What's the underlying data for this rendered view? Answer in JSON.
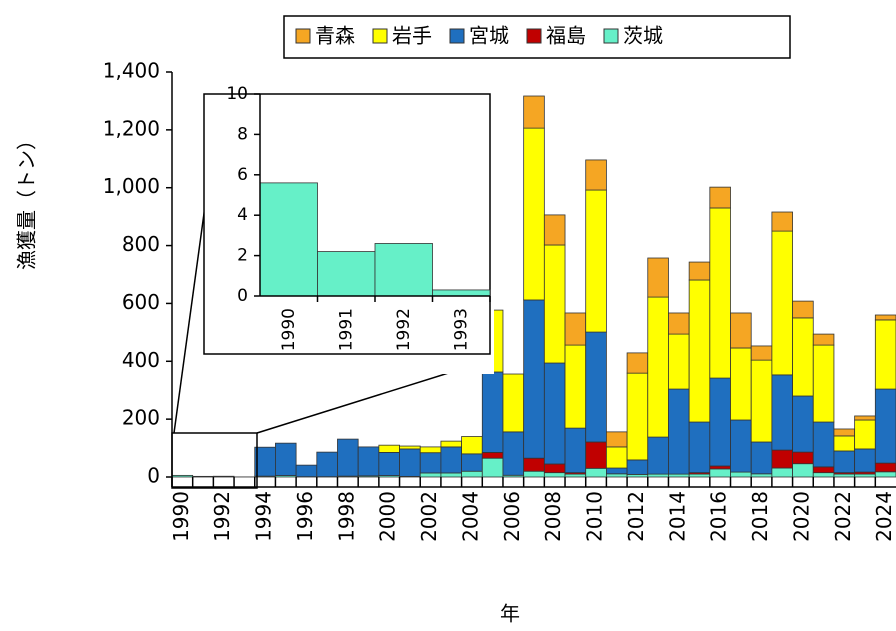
{
  "chart_data": [
    {
      "type": "stacked_bar",
      "y_label": "漁獲量（トン）",
      "x_label": "年",
      "categories": [
        "1990",
        null,
        "1992",
        null,
        "1994",
        null,
        "1996",
        null,
        "1998",
        null,
        "2000",
        null,
        "2002",
        null,
        "2004",
        null,
        "2006",
        null,
        "2008",
        null,
        "2010",
        null,
        "2012",
        null,
        "2014",
        null,
        "2016",
        null,
        "2018",
        null,
        "2020",
        null,
        "2022",
        null,
        "2024"
      ],
      "series": [
        {
          "name": "青森",
          "color": "#f5a623",
          "values": [
            0,
            0,
            0,
            0,
            0,
            0,
            0,
            0,
            0,
            0,
            0,
            0,
            0,
            0,
            0,
            0,
            0,
            111,
            104,
            111,
            104,
            52,
            70,
            135,
            73,
            62,
            72,
            121,
            49,
            66,
            58,
            38,
            24,
            14,
            17
          ]
        },
        {
          "name": "岩手",
          "color": "#ffff00",
          "values": [
            0,
            0,
            0,
            0,
            0,
            0,
            0,
            0,
            0,
            0,
            25,
            10,
            20,
            20,
            60,
            214,
            200,
            594,
            408,
            287,
            491,
            73,
            300,
            484,
            190,
            491,
            588,
            249,
            283,
            497,
            270,
            266,
            52,
            100,
            239
          ]
        },
        {
          "name": "宮城",
          "color": "#1f6fbf",
          "values": [
            0,
            0,
            0,
            0,
            100,
            112,
            40,
            85,
            128,
            100,
            80,
            95,
            70,
            90,
            60,
            278,
            150,
            547,
            349,
            154,
            380,
            20,
            50,
            128,
            294,
            175,
            304,
            180,
            110,
            260,
            194,
            155,
            75,
            80,
            256
          ]
        },
        {
          "name": "福島",
          "color": "#c00000",
          "values": [
            0,
            0,
            0,
            0,
            0,
            0,
            0,
            0,
            0,
            0,
            0,
            0,
            0,
            0,
            0,
            20,
            0,
            45,
            30,
            5,
            91,
            0,
            0,
            0,
            0,
            5,
            10,
            0,
            0,
            62,
            40,
            20,
            5,
            7,
            30
          ]
        },
        {
          "name": "茨城",
          "color": "#66f0c8",
          "values": [
            5.6,
            2.2,
            2.6,
            0.3,
            3,
            5,
            1,
            1,
            3,
            4,
            5,
            2,
            14,
            14,
            20,
            65,
            6,
            20,
            15,
            10,
            30,
            11,
            9,
            10,
            10,
            10,
            28,
            17,
            11,
            31,
            46,
            15,
            10,
            10,
            18
          ]
        }
      ],
      "ylim": [
        0,
        1400
      ],
      "yticks": [
        0,
        200,
        400,
        600,
        800,
        {
          "value": 1000,
          "label": "1,000"
        },
        {
          "value": 1200,
          "label": "1,200"
        },
        {
          "value": 1400,
          "label": "1,400"
        }
      ]
    },
    {
      "type": "bar",
      "categories": [
        "1990",
        "1991",
        "1992",
        "1993"
      ],
      "values": [
        5.6,
        2.2,
        2.6,
        0.3
      ],
      "color": "#66f0c8",
      "ylim": [
        0,
        10
      ],
      "yticks": [
        0,
        2,
        4,
        6,
        8,
        10
      ]
    }
  ]
}
